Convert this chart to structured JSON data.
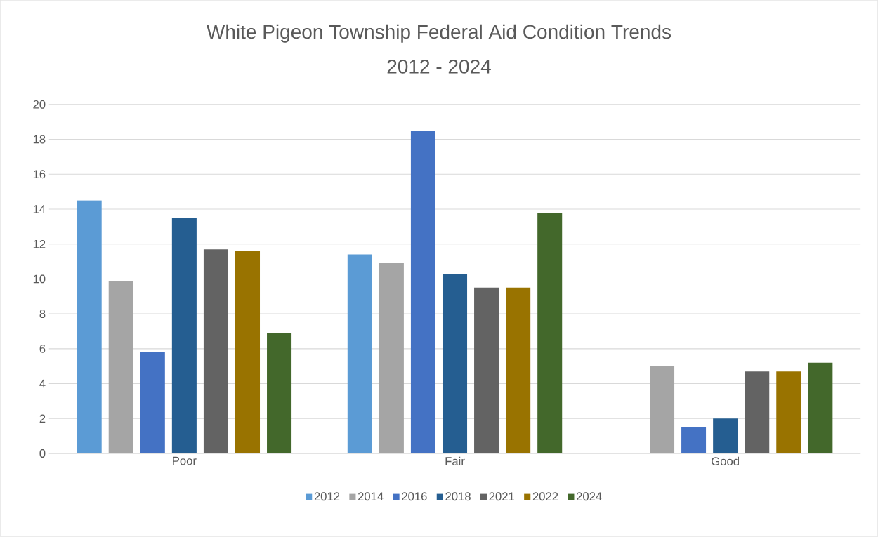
{
  "chart_data": {
    "type": "bar",
    "title": "White Pigeon Township Federal Aid Condition Trends",
    "subtitle": "2012 - 2024",
    "categories": [
      "Poor",
      "Fair",
      "Good"
    ],
    "series": [
      {
        "name": "2012",
        "color": "#5b9bd5",
        "values": [
          14.5,
          11.4,
          0
        ]
      },
      {
        "name": "2014",
        "color": "#a5a5a5",
        "values": [
          9.9,
          10.9,
          5.0
        ]
      },
      {
        "name": "2016",
        "color": "#4472c4",
        "values": [
          5.8,
          18.5,
          1.5
        ]
      },
      {
        "name": "2018",
        "color": "#255e91",
        "values": [
          13.5,
          10.3,
          2.0
        ]
      },
      {
        "name": "2021",
        "color": "#636363",
        "values": [
          11.7,
          9.5,
          4.7
        ]
      },
      {
        "name": "2022",
        "color": "#997300",
        "values": [
          11.6,
          9.5,
          4.7
        ]
      },
      {
        "name": "2024",
        "color": "#43682b",
        "values": [
          6.9,
          13.8,
          5.2
        ]
      }
    ],
    "ylim": [
      0,
      20
    ],
    "yticks": [
      0,
      2,
      4,
      6,
      8,
      10,
      12,
      14,
      16,
      18,
      20
    ],
    "grid": "y",
    "legend": "bottom"
  }
}
